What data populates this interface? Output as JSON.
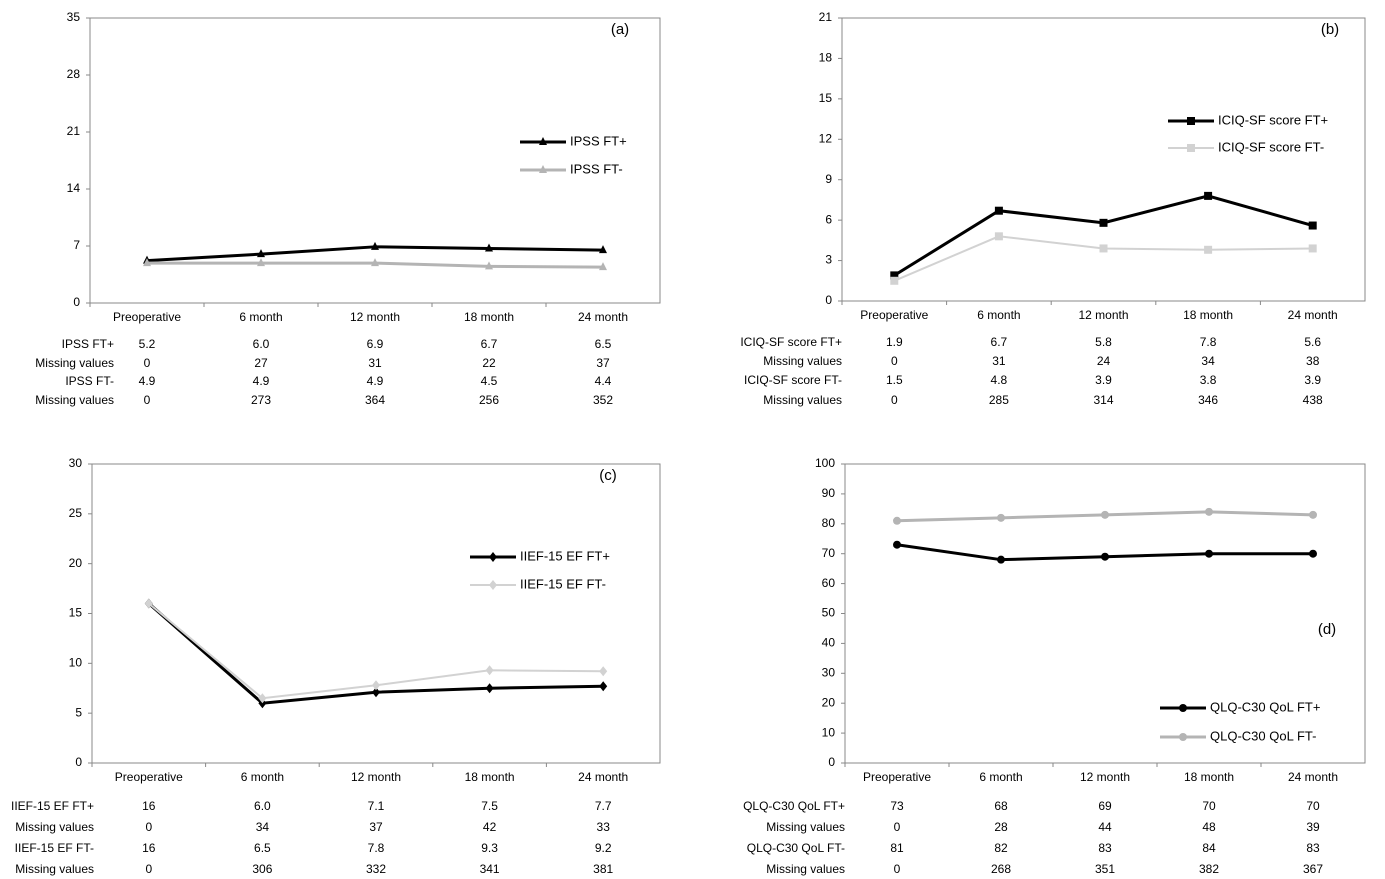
{
  "chart_data": [
    {
      "type": "line",
      "label": "(a)",
      "categories": [
        "Preoperative",
        "6 month",
        "12 month",
        "18 month",
        "24 month"
      ],
      "ylim": [
        0,
        35
      ],
      "yticks": [
        0,
        7,
        14,
        21,
        28,
        35
      ],
      "series": [
        {
          "name": "IPSS FT+",
          "color": "#000000",
          "marker": "triangle",
          "values": [
            5.2,
            6.0,
            6.9,
            6.7,
            6.5
          ],
          "value_labels": [
            "5.2",
            "6.0",
            "6.9",
            "6.7",
            "6.5"
          ],
          "missing": {
            "label": "Missing values",
            "values": [
              0,
              27,
              31,
              22,
              37
            ]
          }
        },
        {
          "name": "IPSS FT-",
          "color": "#b4b4b4",
          "marker": "triangle",
          "values": [
            4.9,
            4.9,
            4.9,
            4.5,
            4.4
          ],
          "missing": {
            "label": "Missing values",
            "values": [
              0,
              273,
              364,
              256,
              352
            ]
          }
        }
      ]
    },
    {
      "type": "line",
      "label": "(b)",
      "categories": [
        "Preoperative",
        "6 month",
        "12 month",
        "18 month",
        "24 month"
      ],
      "ylim": [
        0,
        21
      ],
      "yticks": [
        0,
        3,
        6,
        9,
        12,
        15,
        18,
        21
      ],
      "series": [
        {
          "name": "ICIQ-SF score FT+",
          "color": "#000000",
          "marker": "square",
          "values": [
            1.9,
            6.7,
            5.8,
            7.8,
            5.6
          ],
          "missing": {
            "label": "Missing values",
            "values": [
              0,
              31,
              24,
              34,
              38
            ]
          }
        },
        {
          "name": "ICIQ-SF score FT-",
          "color": "#d2d2d2",
          "marker": "square",
          "values": [
            1.5,
            4.8,
            3.9,
            3.8,
            3.9
          ],
          "missing": {
            "label": "Missing values",
            "values": [
              0,
              285,
              314,
              346,
              438
            ]
          }
        }
      ]
    },
    {
      "type": "line",
      "label": "(c)",
      "categories": [
        "Preoperative",
        "6 month",
        "12 month",
        "18 month",
        "24 month"
      ],
      "ylim": [
        0,
        30
      ],
      "yticks": [
        0,
        5,
        10,
        15,
        20,
        25,
        30
      ],
      "series": [
        {
          "name": "IIEF-15 EF FT+",
          "color": "#000000",
          "marker": "diamond",
          "values": [
            16,
            6.0,
            7.1,
            7.5,
            7.7
          ],
          "value_labels": [
            "16",
            "6.0",
            "7.1",
            "7.5",
            "7.7"
          ],
          "missing": {
            "label": "Missing values",
            "values": [
              0,
              34,
              37,
              42,
              33
            ]
          }
        },
        {
          "name": "IIEF-15 EF FT-",
          "color": "#d2d2d2",
          "marker": "diamond",
          "values": [
            16,
            6.5,
            7.8,
            9.3,
            9.2
          ],
          "missing": {
            "label": "Missing values",
            "values": [
              0,
              306,
              332,
              341,
              381
            ]
          }
        }
      ]
    },
    {
      "type": "line",
      "label": "(d)",
      "categories": [
        "Preoperative",
        "6 month",
        "12 month",
        "18 month",
        "24 month"
      ],
      "ylim": [
        0,
        100
      ],
      "yticks": [
        0,
        10,
        20,
        30,
        40,
        50,
        60,
        70,
        80,
        90,
        100
      ],
      "series": [
        {
          "name": "QLQ-C30 QoL FT+",
          "color": "#000000",
          "marker": "circle",
          "values": [
            73,
            68,
            69,
            70,
            70
          ],
          "missing": {
            "label": "Missing values",
            "values": [
              0,
              28,
              44,
              48,
              39
            ]
          }
        },
        {
          "name": "QLQ-C30 QoL FT-",
          "color": "#b4b4b4",
          "marker": "circle",
          "values": [
            81,
            82,
            83,
            84,
            83
          ],
          "missing": {
            "label": "Missing values",
            "values": [
              0,
              268,
              351,
              382,
              367
            ]
          }
        }
      ]
    }
  ]
}
